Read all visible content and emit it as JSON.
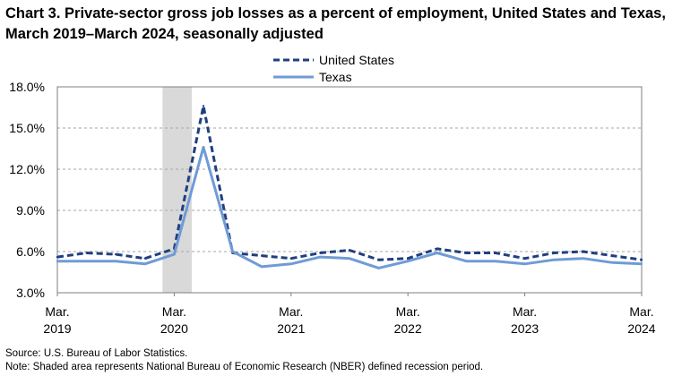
{
  "chart_data": {
    "type": "line",
    "title": "Chart 3. Private-sector gross job losses as a percent of employment, United States and Texas, March 2019–March 2024, seasonally adjusted",
    "x": [
      "2019-Q1",
      "2019-Q2",
      "2019-Q3",
      "2019-Q4",
      "2020-Q1",
      "2020-Q2",
      "2020-Q3",
      "2020-Q4",
      "2021-Q1",
      "2021-Q2",
      "2021-Q3",
      "2021-Q4",
      "2022-Q1",
      "2022-Q2",
      "2022-Q3",
      "2022-Q4",
      "2023-Q1",
      "2023-Q2",
      "2023-Q3",
      "2023-Q4",
      "2024-Q1"
    ],
    "series": [
      {
        "name": "United States",
        "style": "dashed",
        "color": "#1f3f7f",
        "values": [
          5.6,
          5.9,
          5.8,
          5.5,
          6.2,
          16.6,
          5.9,
          5.7,
          5.5,
          5.9,
          6.1,
          5.4,
          5.5,
          6.2,
          5.9,
          5.9,
          5.5,
          5.9,
          6.0,
          5.7,
          5.4
        ]
      },
      {
        "name": "Texas",
        "style": "solid",
        "color": "#6f9bd6",
        "values": [
          5.3,
          5.3,
          5.3,
          5.1,
          5.8,
          13.6,
          6.0,
          4.9,
          5.1,
          5.6,
          5.5,
          4.8,
          5.3,
          5.9,
          5.3,
          5.3,
          5.1,
          5.4,
          5.5,
          5.2,
          5.1
        ]
      }
    ],
    "x_tick_labels": [
      {
        "index": 0,
        "month": "Mar.",
        "year": "2019"
      },
      {
        "index": 4,
        "month": "Mar.",
        "year": "2020"
      },
      {
        "index": 8,
        "month": "Mar.",
        "year": "2021"
      },
      {
        "index": 12,
        "month": "Mar.",
        "year": "2022"
      },
      {
        "index": 16,
        "month": "Mar.",
        "year": "2023"
      },
      {
        "index": 20,
        "month": "Mar.",
        "year": "2024"
      }
    ],
    "y_ticks": [
      3.0,
      6.0,
      9.0,
      12.0,
      15.0,
      18.0
    ],
    "y_tick_labels": [
      "3.0%",
      "6.0%",
      "9.0%",
      "12.0%",
      "15.0%",
      "18.0%"
    ],
    "ylim": [
      3.0,
      18.0
    ],
    "xlabel": "",
    "ylabel": "",
    "grid": "horizontal dashed",
    "legend_position": "top-center",
    "recession_shading": {
      "start_index": 3.6,
      "end_index": 4.6,
      "color": "#d9d9d9"
    }
  },
  "footer": {
    "source": "Source: U.S. Bureau of Labor Statistics.",
    "note": "Note: Shaded area represents National Bureau of Economic Research (NBER) defined recession period."
  }
}
